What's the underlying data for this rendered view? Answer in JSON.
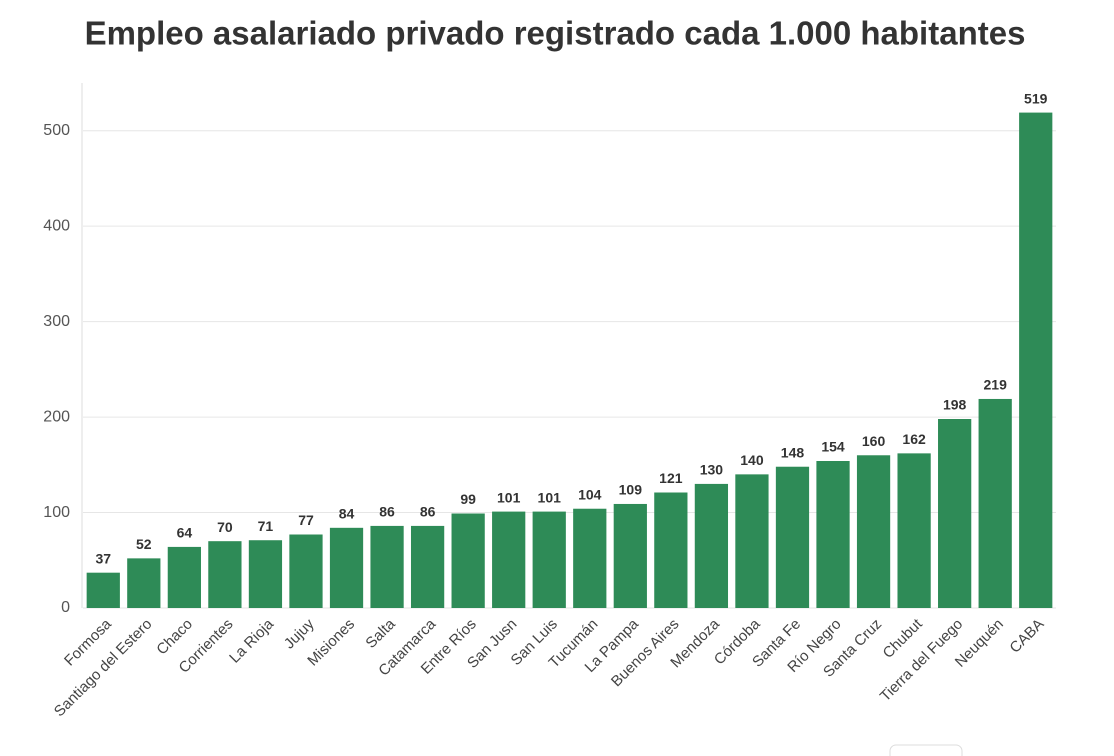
{
  "chart_data": {
    "type": "bar",
    "title": "Empleo asalariado privado registrado cada 1.000 habitantes",
    "categories": [
      "Formosa",
      "Santiago del Estero",
      "Chaco",
      "Corrientes",
      "La Rioja",
      "Jujuy",
      "Misiones",
      "Salta",
      "Catamarca",
      "Entre Ríos",
      "San Jusn",
      "San Luis",
      "Tucumán",
      "La Pampa",
      "Buenos Aires",
      "Mendoza",
      "Córdoba",
      "Santa Fe",
      "Río Negro",
      "Santa Cruz",
      "Chubut",
      "Tierra del Fuego",
      "Neuquén",
      "CABA"
    ],
    "values": [
      37,
      52,
      64,
      70,
      71,
      77,
      84,
      86,
      86,
      99,
      101,
      101,
      104,
      109,
      121,
      130,
      140,
      148,
      154,
      160,
      162,
      198,
      219,
      519
    ],
    "color": "#2e8b57",
    "ylim": [
      0,
      550
    ],
    "yticks": [
      0,
      100,
      200,
      300,
      400,
      500
    ],
    "grid": true
  }
}
